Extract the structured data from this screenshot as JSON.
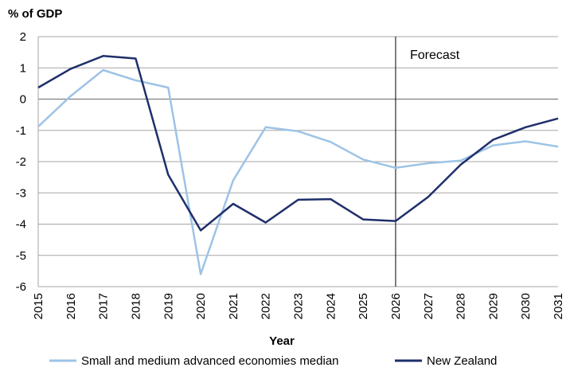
{
  "chart_data": {
    "type": "line",
    "title": "",
    "ylabel": "% of GDP",
    "xlabel": "Year",
    "x": [
      "2015",
      "2016",
      "2017",
      "2018",
      "2019",
      "2020",
      "2021",
      "2022",
      "2023",
      "2024",
      "2025",
      "2026",
      "2027",
      "2028",
      "2029",
      "2030",
      "2031"
    ],
    "ylim": [
      -6,
      2
    ],
    "yticks": [
      2,
      1,
      0,
      -1,
      -2,
      -3,
      -4,
      -5,
      -6
    ],
    "grid": true,
    "legend": "bottom",
    "series": [
      {
        "name": "Small and medium advanced economies median",
        "color": "#9dc3e6",
        "values": [
          -0.88,
          0.1,
          0.93,
          0.6,
          0.37,
          -5.6,
          -2.6,
          -0.9,
          -1.03,
          -1.37,
          -1.93,
          -2.2,
          -2.05,
          -1.97,
          -1.48,
          -1.35,
          -1.52
        ]
      },
      {
        "name": "New Zealand",
        "color": "#1f2f6b",
        "values": [
          0.37,
          0.97,
          1.38,
          1.3,
          -2.42,
          -4.2,
          -3.35,
          -3.95,
          -3.22,
          -3.2,
          -3.85,
          -3.9,
          -3.13,
          -2.1,
          -1.3,
          -0.9,
          -0.62
        ]
      }
    ],
    "annotations": [
      {
        "text": "Forecast",
        "x": "2026"
      }
    ]
  }
}
